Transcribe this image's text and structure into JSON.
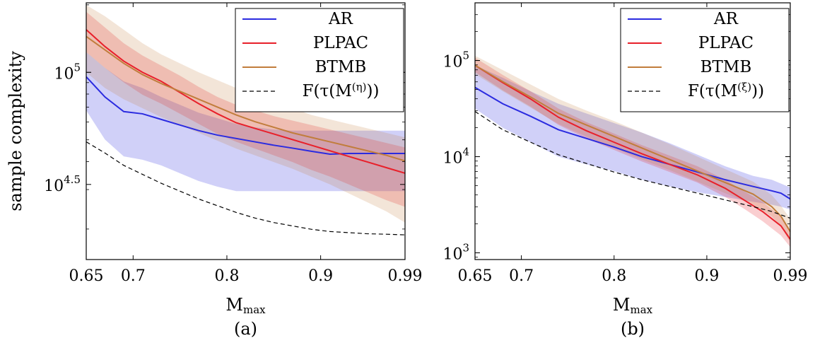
{
  "chart_data": [
    {
      "type": "line",
      "caption": "(a)",
      "xlabel": "M_max",
      "ylabel": "sample complexity",
      "yscale": "log",
      "xlim": [
        0.65,
        0.99
      ],
      "ylim": [
        4.165,
        5.31
      ],
      "xticks": [
        0.65,
        0.7,
        0.8,
        0.9,
        0.99
      ],
      "xtick_labels": [
        "0.65",
        "0.7",
        "0.8",
        "0.9",
        "0.99"
      ],
      "yticks": [
        4.5,
        5
      ],
      "ytick_labels": [
        {
          "base": "10",
          "exp": "4.5"
        },
        {
          "base": "10",
          "exp": "5"
        }
      ],
      "legend_position": "top-right",
      "series": [
        {
          "name": "AR",
          "color": "#2b2be0",
          "style": "solid",
          "x": [
            0.65,
            0.67,
            0.69,
            0.71,
            0.73,
            0.75,
            0.77,
            0.79,
            0.81,
            0.83,
            0.85,
            0.87,
            0.89,
            0.91,
            0.93,
            0.95,
            0.97,
            0.99
          ],
          "y": [
            4.98,
            4.89,
            4.825,
            4.815,
            4.79,
            4.765,
            4.74,
            4.72,
            4.705,
            4.69,
            4.675,
            4.662,
            4.648,
            4.635,
            4.638,
            4.638,
            4.638,
            4.638
          ],
          "lower": [
            4.83,
            4.7,
            4.625,
            4.61,
            4.585,
            4.55,
            4.515,
            4.49,
            4.47,
            4.47,
            4.47,
            4.47,
            4.47,
            4.47,
            4.47,
            4.47,
            4.47,
            4.47
          ],
          "upper": [
            5.09,
            5.02,
            4.96,
            4.93,
            4.89,
            4.855,
            4.82,
            4.795,
            4.77,
            4.755,
            4.745,
            4.74,
            4.74,
            4.74,
            4.74,
            4.74,
            4.74,
            4.74
          ]
        },
        {
          "name": "PLPAC",
          "color": "#e8202a",
          "style": "solid",
          "x": [
            0.65,
            0.67,
            0.69,
            0.71,
            0.73,
            0.75,
            0.77,
            0.79,
            0.81,
            0.83,
            0.85,
            0.87,
            0.89,
            0.91,
            0.93,
            0.95,
            0.97,
            0.99
          ],
          "y": [
            5.19,
            5.115,
            5.05,
            5.0,
            4.96,
            4.91,
            4.86,
            4.815,
            4.775,
            4.75,
            4.725,
            4.7,
            4.675,
            4.65,
            4.625,
            4.6,
            4.575,
            4.55
          ],
          "lower": [
            5.09,
            5.02,
            4.955,
            4.9,
            4.86,
            4.815,
            4.77,
            4.725,
            4.69,
            4.66,
            4.63,
            4.6,
            4.565,
            4.535,
            4.5,
            4.465,
            4.43,
            4.4
          ],
          "upper": [
            5.27,
            5.2,
            5.13,
            5.075,
            5.03,
            4.985,
            4.935,
            4.89,
            4.855,
            4.83,
            4.805,
            4.785,
            4.765,
            4.745,
            4.725,
            4.705,
            4.685,
            4.665
          ]
        },
        {
          "name": "BTMB",
          "color": "#c17d3c",
          "style": "solid",
          "x": [
            0.65,
            0.67,
            0.69,
            0.71,
            0.73,
            0.75,
            0.77,
            0.79,
            0.81,
            0.83,
            0.85,
            0.87,
            0.89,
            0.91,
            0.93,
            0.95,
            0.97,
            0.99
          ],
          "y": [
            5.16,
            5.1,
            5.04,
            4.99,
            4.95,
            4.915,
            4.88,
            4.845,
            4.81,
            4.78,
            4.755,
            4.73,
            4.71,
            4.69,
            4.67,
            4.65,
            4.63,
            4.605
          ],
          "lower": [
            5.0,
            4.93,
            4.88,
            4.84,
            4.8,
            4.765,
            4.73,
            4.695,
            4.66,
            4.63,
            4.6,
            4.57,
            4.535,
            4.5,
            4.46,
            4.42,
            4.38,
            4.33
          ],
          "upper": [
            5.3,
            5.25,
            5.19,
            5.13,
            5.08,
            5.04,
            5.0,
            4.965,
            4.93,
            4.9,
            4.87,
            4.84,
            4.81,
            4.79,
            4.77,
            4.75,
            4.73,
            4.71
          ]
        },
        {
          "name": "F(τ(M^(η)))",
          "color": "#000000",
          "style": "dashed",
          "x": [
            0.65,
            0.67,
            0.69,
            0.71,
            0.73,
            0.75,
            0.77,
            0.79,
            0.81,
            0.83,
            0.85,
            0.87,
            0.89,
            0.91,
            0.93,
            0.95,
            0.97,
            0.99
          ],
          "y": [
            4.69,
            4.64,
            4.585,
            4.545,
            4.505,
            4.47,
            4.435,
            4.405,
            4.375,
            4.35,
            4.33,
            4.315,
            4.3,
            4.29,
            4.285,
            4.28,
            4.278,
            4.275
          ]
        }
      ]
    },
    {
      "type": "line",
      "caption": "(b)",
      "xlabel": "M_max",
      "yscale": "log",
      "xlim": [
        0.65,
        0.99
      ],
      "ylim": [
        2.93,
        5.6
      ],
      "xticks": [
        0.65,
        0.7,
        0.8,
        0.9,
        0.99
      ],
      "xtick_labels": [
        "0.65",
        "0.7",
        "0.8",
        "0.9",
        "0.99"
      ],
      "yticks": [
        3,
        4,
        5
      ],
      "ytick_labels": [
        {
          "base": "10",
          "exp": "3"
        },
        {
          "base": "10",
          "exp": "4"
        },
        {
          "base": "10",
          "exp": "5"
        }
      ],
      "legend_position": "top-right",
      "series": [
        {
          "name": "AR",
          "color": "#2b2be0",
          "style": "solid",
          "x": [
            0.65,
            0.68,
            0.71,
            0.74,
            0.77,
            0.8,
            0.83,
            0.86,
            0.89,
            0.92,
            0.95,
            0.97,
            0.98,
            0.99
          ],
          "y": [
            4.72,
            4.55,
            4.42,
            4.28,
            4.19,
            4.1,
            4.0,
            3.92,
            3.84,
            3.76,
            3.69,
            3.645,
            3.62,
            3.56
          ],
          "lower": [
            4.5,
            4.3,
            4.15,
            4.0,
            3.92,
            3.85,
            3.76,
            3.69,
            3.63,
            3.58,
            3.53,
            3.5,
            3.48,
            3.45
          ],
          "upper": [
            4.95,
            4.82,
            4.68,
            4.55,
            4.45,
            4.35,
            4.25,
            4.14,
            4.02,
            3.9,
            3.8,
            3.76,
            3.72,
            3.68
          ]
        },
        {
          "name": "PLPAC",
          "color": "#e8202a",
          "style": "solid",
          "x": [
            0.65,
            0.68,
            0.71,
            0.74,
            0.77,
            0.8,
            0.83,
            0.86,
            0.89,
            0.92,
            0.94,
            0.96,
            0.98,
            0.99
          ],
          "y": [
            4.95,
            4.77,
            4.6,
            4.41,
            4.27,
            4.15,
            4.03,
            3.92,
            3.81,
            3.67,
            3.55,
            3.43,
            3.28,
            3.14
          ],
          "lower": [
            4.88,
            4.69,
            4.52,
            4.33,
            4.19,
            4.07,
            3.95,
            3.84,
            3.73,
            3.58,
            3.46,
            3.33,
            3.18,
            3.06
          ],
          "upper": [
            5.03,
            4.85,
            4.68,
            4.5,
            4.36,
            4.24,
            4.12,
            4.01,
            3.9,
            3.76,
            3.64,
            3.53,
            3.38,
            3.24
          ]
        },
        {
          "name": "BTMB",
          "color": "#c17d3c",
          "style": "solid",
          "x": [
            0.65,
            0.68,
            0.71,
            0.74,
            0.77,
            0.8,
            0.83,
            0.86,
            0.89,
            0.92,
            0.95,
            0.97,
            0.98,
            0.99
          ],
          "y": [
            4.95,
            4.78,
            4.62,
            4.45,
            4.33,
            4.21,
            4.09,
            3.97,
            3.85,
            3.73,
            3.61,
            3.48,
            3.38,
            3.22
          ],
          "lower": [
            4.86,
            4.68,
            4.51,
            4.34,
            4.21,
            4.09,
            3.97,
            3.86,
            3.74,
            3.62,
            3.5,
            3.38,
            3.28,
            3.1
          ],
          "upper": [
            5.05,
            4.9,
            4.75,
            4.6,
            4.48,
            4.37,
            4.25,
            4.13,
            4.0,
            3.87,
            3.74,
            3.6,
            3.49,
            3.35
          ]
        },
        {
          "name": "F(τ(M^(ξ)))",
          "color": "#000000",
          "style": "dashed",
          "x": [
            0.65,
            0.68,
            0.71,
            0.74,
            0.77,
            0.8,
            0.83,
            0.86,
            0.89,
            0.92,
            0.95,
            0.97,
            0.99
          ],
          "y": [
            4.47,
            4.28,
            4.15,
            4.02,
            3.93,
            3.84,
            3.76,
            3.69,
            3.62,
            3.55,
            3.48,
            3.43,
            3.36
          ]
        }
      ]
    }
  ]
}
